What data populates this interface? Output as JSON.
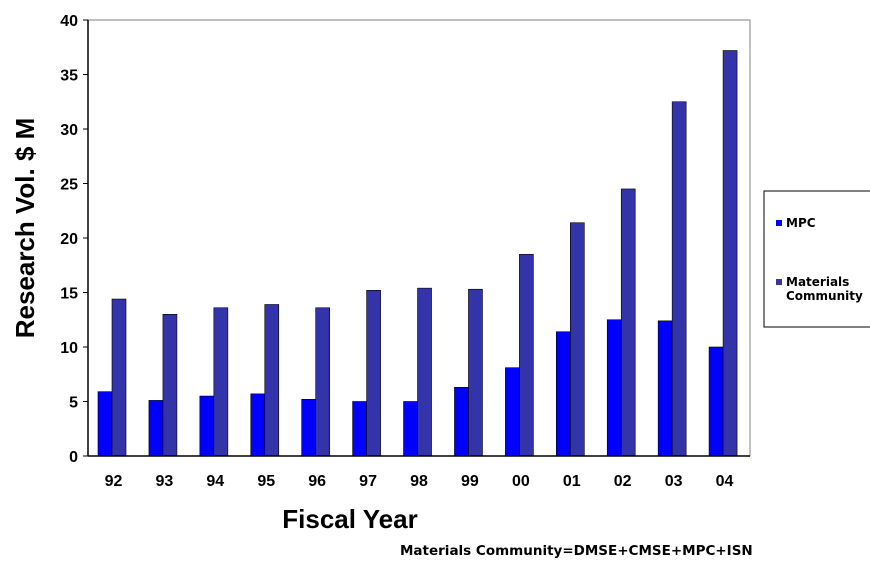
{
  "chart_data": {
    "type": "bar",
    "categories": [
      "92",
      "93",
      "94",
      "95",
      "96",
      "97",
      "98",
      "99",
      "00",
      "01",
      "02",
      "03",
      "04"
    ],
    "series": [
      {
        "name": "MPC",
        "color": "#0000ff",
        "values": [
          5.9,
          5.1,
          5.5,
          5.7,
          5.2,
          5.0,
          5.0,
          6.3,
          8.1,
          11.4,
          12.5,
          12.4,
          10.0
        ]
      },
      {
        "name": "Materials Community",
        "color": "#3333aa",
        "values": [
          14.4,
          13.0,
          13.6,
          13.9,
          13.6,
          15.2,
          15.4,
          15.3,
          18.5,
          21.4,
          24.5,
          32.5,
          37.2
        ]
      }
    ],
    "xlabel": "Fiscal Year",
    "ylabel": "Research Vol. $ M",
    "ylim": [
      0,
      40
    ],
    "yticks": [
      0,
      5,
      10,
      15,
      20,
      25,
      30,
      35,
      40
    ],
    "grid": false,
    "legend_position": "right",
    "legend": {
      "mpc": "MPC",
      "materials_line1": "Materials",
      "materials_line2": "Community"
    },
    "footnote": "Materials Community=DMSE+CMSE+MPC+ISN"
  }
}
